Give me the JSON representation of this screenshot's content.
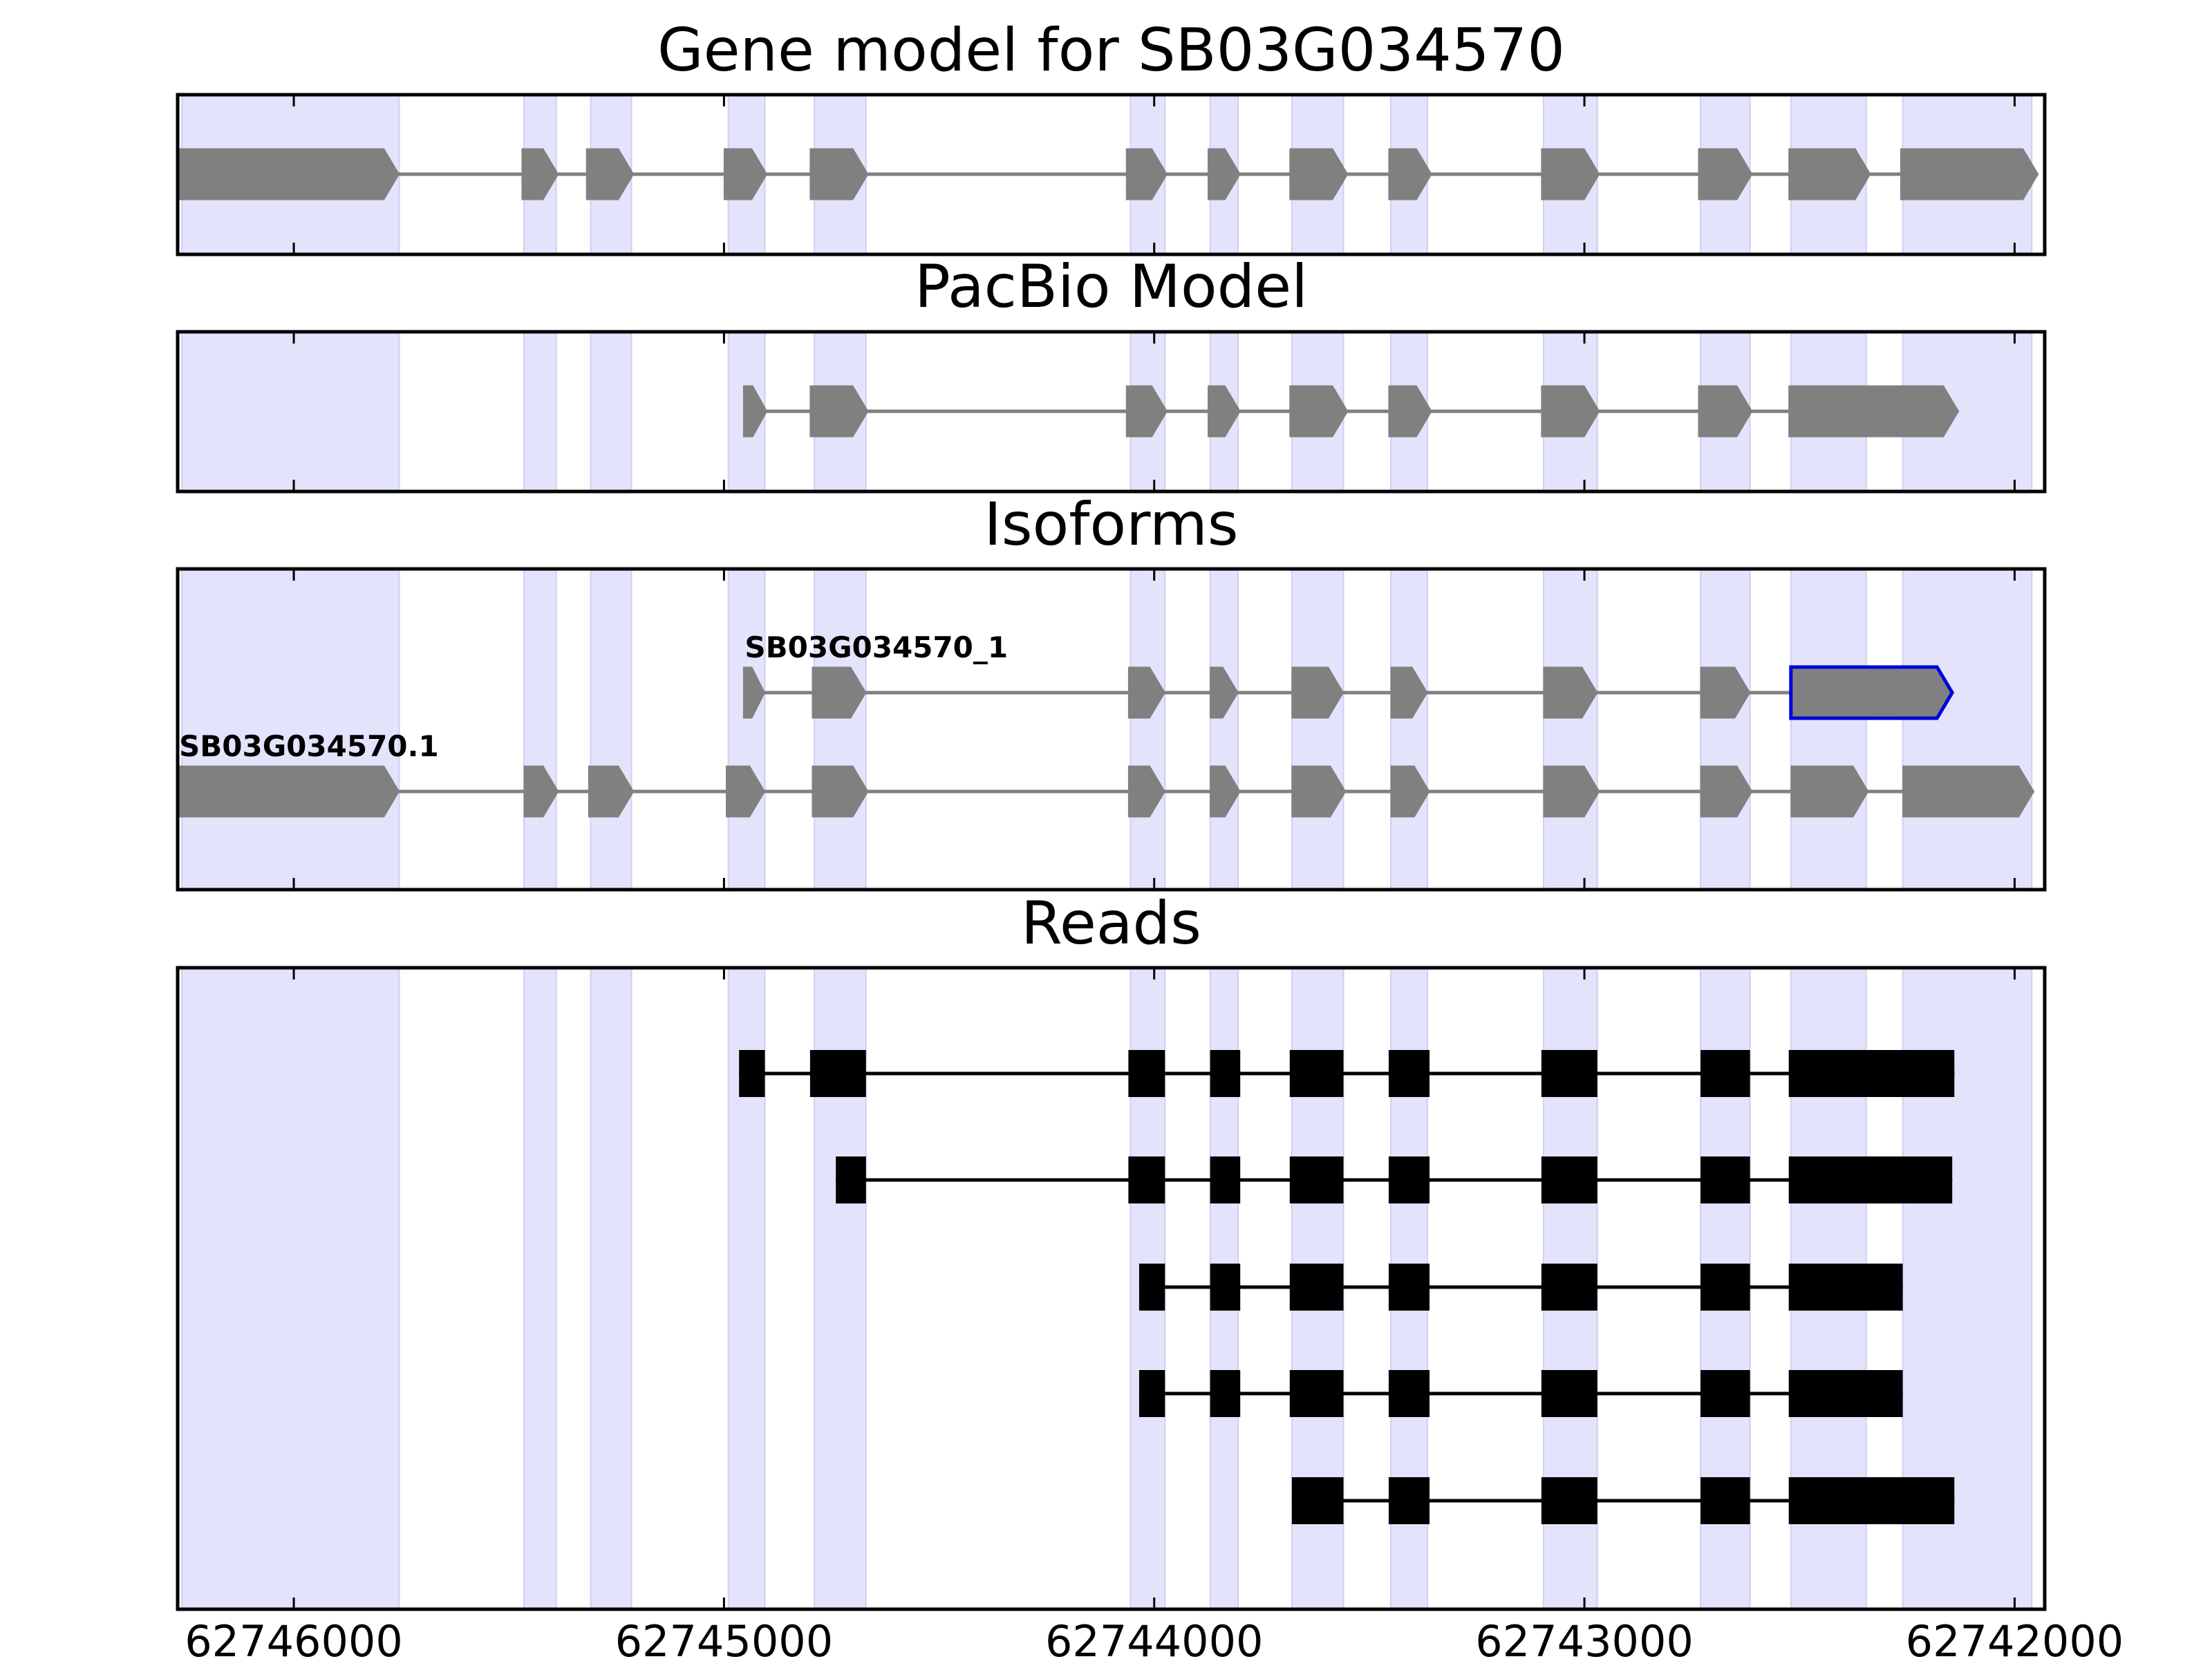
{
  "chart_data": {
    "type": "gene-structure",
    "x_axis": {
      "min": 62746270,
      "max": 62741930,
      "reversed": true,
      "ticks": [
        62746000,
        62745000,
        62744000,
        62743000,
        62742000
      ],
      "tick_labels": [
        "62746000",
        "62745000",
        "62744000",
        "62743000",
        "62742000"
      ]
    },
    "highlight_exons": [
      [
        62746260,
        62745755
      ],
      [
        62745465,
        62745390
      ],
      [
        62745310,
        62745215
      ],
      [
        62744990,
        62744905
      ],
      [
        62744790,
        62744670
      ],
      [
        62744055,
        62743975
      ],
      [
        62743870,
        62743805
      ],
      [
        62743680,
        62743560
      ],
      [
        62743450,
        62743365
      ],
      [
        62743095,
        62742970
      ],
      [
        62742730,
        62742615
      ],
      [
        62742520,
        62742345
      ],
      [
        62742260,
        62741960
      ]
    ],
    "panels": [
      {
        "title": "Gene model for SB03G034570",
        "tracks": [
          {
            "style": "arrow-gray",
            "label": "",
            "exons": [
              [
                62746270,
                62745755
              ],
              [
                62745470,
                62745385
              ],
              [
                62745320,
                62745210
              ],
              [
                62745000,
                62744900
              ],
              [
                62744800,
                62744665
              ],
              [
                62744065,
                62743970
              ],
              [
                62743875,
                62743800
              ],
              [
                62743685,
                62743550
              ],
              [
                62743455,
                62743355
              ],
              [
                62743100,
                62742965
              ],
              [
                62742735,
                62742610
              ],
              [
                62742525,
                62742335
              ],
              [
                62742265,
                62741945
              ]
            ]
          }
        ]
      },
      {
        "title": "PacBio Model",
        "tracks": [
          {
            "style": "arrow-gray",
            "label": "",
            "exons": [
              [
                62744955,
                62744900
              ],
              [
                62744800,
                62744665
              ],
              [
                62744065,
                62743970
              ],
              [
                62743875,
                62743800
              ],
              [
                62743685,
                62743550
              ],
              [
                62743455,
                62743355
              ],
              [
                62743100,
                62742965
              ],
              [
                62742735,
                62742610
              ],
              [
                62742525,
                62742130
              ]
            ]
          }
        ]
      },
      {
        "title": "Isoforms",
        "tracks": [
          {
            "style": "arrow-gray",
            "label": "SB03G034570_1",
            "highlight_last": true,
            "exons": [
              [
                62744955,
                62744905
              ],
              [
                62744795,
                62744670
              ],
              [
                62744060,
                62743975
              ],
              [
                62743870,
                62743805
              ],
              [
                62743680,
                62743560
              ],
              [
                62743450,
                62743365
              ],
              [
                62743095,
                62742970
              ],
              [
                62742730,
                62742615
              ],
              [
                62742520,
                62742145
              ]
            ]
          },
          {
            "style": "arrow-gray",
            "label": "SB03G034570.1",
            "exons": [
              [
                62746270,
                62745755
              ],
              [
                62745465,
                62745385
              ],
              [
                62745315,
                62745210
              ],
              [
                62744995,
                62744905
              ],
              [
                62744795,
                62744665
              ],
              [
                62744060,
                62743975
              ],
              [
                62743870,
                62743800
              ],
              [
                62743680,
                62743555
              ],
              [
                62743450,
                62743360
              ],
              [
                62743095,
                62742965
              ],
              [
                62742730,
                62742610
              ],
              [
                62742520,
                62742340
              ],
              [
                62742260,
                62741955
              ]
            ]
          }
        ]
      },
      {
        "title": "Reads",
        "tracks": [
          {
            "style": "box-black",
            "label": "",
            "exons": [
              [
                62744965,
                62744905
              ],
              [
                62744800,
                62744670
              ],
              [
                62744060,
                62743975
              ],
              [
                62743870,
                62743800
              ],
              [
                62743685,
                62743560
              ],
              [
                62743455,
                62743360
              ],
              [
                62743100,
                62742970
              ],
              [
                62742730,
                62742615
              ],
              [
                62742525,
                62742140
              ]
            ]
          },
          {
            "style": "box-black",
            "label": "",
            "exons": [
              [
                62744740,
                62744670
              ],
              [
                62744060,
                62743975
              ],
              [
                62743870,
                62743800
              ],
              [
                62743685,
                62743560
              ],
              [
                62743455,
                62743360
              ],
              [
                62743100,
                62742970
              ],
              [
                62742730,
                62742615
              ],
              [
                62742525,
                62742145
              ]
            ]
          },
          {
            "style": "box-black",
            "label": "",
            "exons": [
              [
                62744035,
                62743975
              ],
              [
                62743870,
                62743800
              ],
              [
                62743685,
                62743560
              ],
              [
                62743455,
                62743360
              ],
              [
                62743100,
                62742970
              ],
              [
                62742730,
                62742615
              ],
              [
                62742525,
                62742260
              ]
            ]
          },
          {
            "style": "box-black",
            "label": "",
            "exons": [
              [
                62744035,
                62743975
              ],
              [
                62743870,
                62743800
              ],
              [
                62743685,
                62743560
              ],
              [
                62743455,
                62743360
              ],
              [
                62743100,
                62742970
              ],
              [
                62742730,
                62742615
              ],
              [
                62742525,
                62742260
              ]
            ]
          },
          {
            "style": "box-black",
            "label": "",
            "exons": [
              [
                62743680,
                62743560
              ],
              [
                62743455,
                62743360
              ],
              [
                62743100,
                62742970
              ],
              [
                62742730,
                62742615
              ],
              [
                62742525,
                62742140
              ]
            ]
          }
        ]
      }
    ]
  },
  "colors": {
    "highlight": "#e3e3fb",
    "highlight_edge": "#cfcff5",
    "exon_gray": "#808080",
    "exon_black": "#000000",
    "selected_outline": "#0000dd",
    "intron_gray": "#808080",
    "intron_black": "#000000",
    "frame": "#000000"
  }
}
